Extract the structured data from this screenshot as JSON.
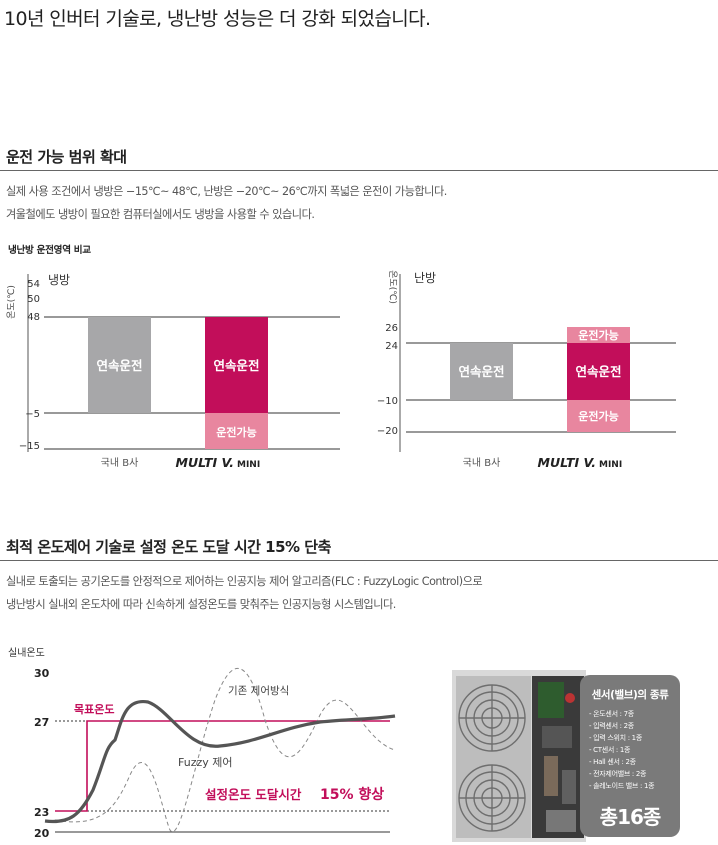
{
  "title": "10년 인버터 기술로, 냉난방 성능은 더 강화 되었습니다.",
  "section1": {
    "heading": "운전 가능 범위 확대",
    "lines": [
      "실제 사용 조건에서 냉방은 −15℃~ 48℃, 난방은 −20℃~ 26℃까지 폭넓은 운전이 가능합니다.",
      "겨울철에도 냉방이 필요한 컴퓨터실에서도 냉방을 사용할 수 있습니다."
    ],
    "compare_label": "냉난방 운전영역 비교"
  },
  "cooling": {
    "unit_label": "온도(℃)",
    "mode_label": "냉방",
    "ticks": [
      "54",
      "50",
      "48",
      "−5",
      "−15"
    ],
    "bar_label": "연속운전",
    "extra_label": "운전가능",
    "brand_a": "국내 B사",
    "brand_b_main": "MULTI V.",
    "brand_b_sub": "MINI"
  },
  "heating": {
    "unit_label": "온도(℃)",
    "mode_label": "난방",
    "ticks": [
      "26",
      "24",
      "−10",
      "−20"
    ],
    "bar_label": "연속운전",
    "extra_label": "운전가능",
    "brand_a": "국내 B사",
    "brand_b_main": "MULTI V.",
    "brand_b_sub": "MINI"
  },
  "section2": {
    "heading": "최적 온도제어 기술로 설정 온도 도달 시간 15% 단축",
    "lines": [
      "실내로 토출되는 공기온도를 안정적으로 제어하는 인공지능 제어 알고리즘(FLC : FuzzyLogic Control)으로",
      "냉난방시 실내외 온도차에 따라 신속하게 설정온도를 맞춰주는 인공지능형 시스템입니다."
    ]
  },
  "control_chart": {
    "ylabel": "실내온도",
    "ticks": [
      "30",
      "27",
      "23",
      "20"
    ],
    "target_label": "목표온도",
    "legacy_label": "기존 제어방식",
    "fuzzy_label": "Fuzzy 제어",
    "improve_prefix": "설정온도 도달시간",
    "improve_value": "15% 향상"
  },
  "sensor_box": {
    "title": "센서(밸브)의 종류",
    "items": [
      "- 온도센서 : 7종",
      "- 입력센서 : 2종",
      "- 입력 스위치 : 1종",
      "- CT센서 : 1종",
      "- Hall 센서 : 2종",
      "- 전자제어밸브 : 2종",
      "- 솔레노이드 밸브 : 1종"
    ],
    "total": "총16종"
  },
  "colors": {
    "accent": "#c20e5a",
    "accent_light": "#e8869f",
    "gray_bar": "#a7a7a9",
    "sensor_box": "#7a7a7a"
  }
}
